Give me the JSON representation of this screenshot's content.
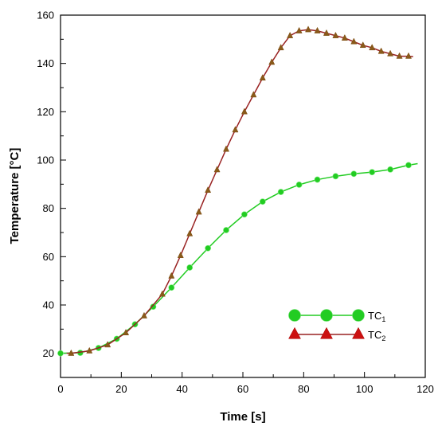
{
  "chart_data": {
    "type": "line",
    "title": "",
    "xlabel": "Time [s]",
    "ylabel": "Temperature [°C]",
    "xlim": [
      0,
      120
    ],
    "ylim": [
      10,
      160
    ],
    "xticks": [
      0,
      20,
      40,
      60,
      80,
      100,
      120
    ],
    "yticks": [
      20,
      40,
      60,
      80,
      100,
      120,
      140,
      160
    ],
    "grid": false,
    "legend_position": "bottom-right",
    "series": [
      {
        "name": "TC",
        "subscript": "1",
        "color": "#22cc22",
        "marker": "circle",
        "x": [
          0,
          6.5,
          12.5,
          18.5,
          24.5,
          30.5,
          36.5,
          42.5,
          48.5,
          54.5,
          60.5,
          66.5,
          72.5,
          78.5,
          84.5,
          90.5,
          96.5,
          102.5,
          108.5,
          114.5
        ],
        "y": [
          20,
          20.2,
          22.2,
          26,
          32,
          39.3,
          47.2,
          55.5,
          63.5,
          71,
          77.5,
          82.8,
          86.8,
          89.8,
          91.9,
          93.3,
          94.3,
          95,
          96.1,
          97.9
        ],
        "line_end": [
          117.5,
          98.5
        ]
      },
      {
        "name": "TC",
        "subscript": "2",
        "color": "#cc1111",
        "line_color": "#992222",
        "marker": "triangle",
        "x": [
          3.5,
          9.5,
          15.5,
          21.5,
          27.5,
          33.5,
          36.5,
          39.5,
          42.5,
          45.5,
          48.5,
          51.5,
          54.5,
          57.5,
          60.5,
          63.5,
          66.5,
          69.5,
          72.5,
          75.5,
          78.5,
          81.5,
          84.5,
          87.5,
          90.5,
          93.5,
          96.5,
          99.5,
          102.5,
          105.5,
          108.5,
          111.5,
          114.5
        ],
        "y": [
          20,
          21,
          23.5,
          28.5,
          35.5,
          44.5,
          52,
          60.5,
          69.5,
          78.5,
          87.5,
          96,
          104.5,
          112.5,
          120,
          127,
          134,
          140.5,
          146.5,
          151.5,
          153.5,
          154,
          153.5,
          152.5,
          151.5,
          150.5,
          149,
          147.5,
          146.5,
          145,
          144,
          143,
          143
        ],
        "line_start": [
          2,
          20
        ],
        "line_end": [
          116,
          142.8
        ]
      }
    ]
  }
}
